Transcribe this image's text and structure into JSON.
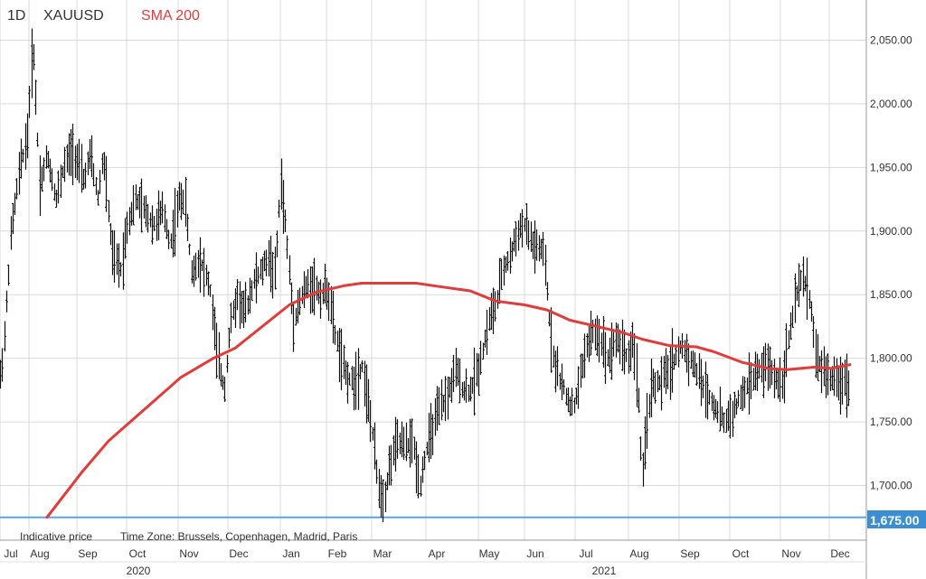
{
  "header": {
    "interval": "1D",
    "symbol": "XAUUSD",
    "indicator": "SMA 200"
  },
  "footer": {
    "note": "Indicative price",
    "timezone": "Time Zone: Brussels, Copenhagen, Madrid, Paris"
  },
  "colors": {
    "sma": "#e03c3c",
    "price": "#111111",
    "level": "#5aa6d6",
    "badge": "#3b8fd0",
    "grid": "#d9d9d9"
  },
  "chart_data": {
    "type": "ohlc",
    "title": "XAUUSD",
    "interval": "1D",
    "ylim": [
      1655,
      2085
    ],
    "y_ticks": [
      1700,
      1750,
      1800,
      1850,
      1900,
      1950,
      2000,
      2050
    ],
    "y_tick_labels": [
      "1,700.00",
      "1,750.00",
      "1,800.00",
      "1,850.00",
      "1,900.00",
      "1,950.00",
      "2,000.00",
      "2,050.00"
    ],
    "x_labels": [
      "Jul",
      "Aug",
      "Sep",
      "Oct",
      "Nov",
      "Dec",
      "Jan",
      "Feb",
      "Mar",
      "Apr",
      "May",
      "Jun",
      "Jul",
      "Aug",
      "Sep",
      "Oct",
      "Nov",
      "Dec"
    ],
    "years": [
      "2020",
      "2021"
    ],
    "horizontal_line": {
      "value": 1675,
      "label": "1,675.00"
    },
    "price_keyframes": [
      [
        0,
        1785
      ],
      [
        4,
        1810
      ],
      [
        12,
        1900
      ],
      [
        22,
        1950
      ],
      [
        30,
        1975
      ],
      [
        36,
        2050
      ],
      [
        44,
        1935
      ],
      [
        52,
        1960
      ],
      [
        62,
        1925
      ],
      [
        70,
        1950
      ],
      [
        80,
        1965
      ],
      [
        92,
        1940
      ],
      [
        100,
        1960
      ],
      [
        108,
        1925
      ],
      [
        114,
        1960
      ],
      [
        124,
        1880
      ],
      [
        134,
        1870
      ],
      [
        140,
        1905
      ],
      [
        150,
        1925
      ],
      [
        160,
        1915
      ],
      [
        170,
        1905
      ],
      [
        180,
        1915
      ],
      [
        188,
        1890
      ],
      [
        198,
        1925
      ],
      [
        204,
        1925
      ],
      [
        212,
        1865
      ],
      [
        220,
        1880
      ],
      [
        232,
        1855
      ],
      [
        240,
        1800
      ],
      [
        248,
        1775
      ],
      [
        254,
        1825
      ],
      [
        262,
        1850
      ],
      [
        270,
        1835
      ],
      [
        280,
        1860
      ],
      [
        290,
        1870
      ],
      [
        296,
        1880
      ],
      [
        304,
        1865
      ],
      [
        310,
        1940
      ],
      [
        316,
        1900
      ],
      [
        324,
        1830
      ],
      [
        334,
        1850
      ],
      [
        344,
        1860
      ],
      [
        354,
        1850
      ],
      [
        362,
        1855
      ],
      [
        370,
        1820
      ],
      [
        380,
        1790
      ],
      [
        390,
        1780
      ],
      [
        400,
        1795
      ],
      [
        410,
        1750
      ],
      [
        418,
        1700
      ],
      [
        424,
        1690
      ],
      [
        432,
        1720
      ],
      [
        440,
        1735
      ],
      [
        448,
        1730
      ],
      [
        456,
        1735
      ],
      [
        464,
        1700
      ],
      [
        470,
        1725
      ],
      [
        478,
        1745
      ],
      [
        486,
        1760
      ],
      [
        494,
        1770
      ],
      [
        504,
        1790
      ],
      [
        512,
        1775
      ],
      [
        520,
        1775
      ],
      [
        528,
        1790
      ],
      [
        536,
        1815
      ],
      [
        542,
        1835
      ],
      [
        548,
        1840
      ],
      [
        556,
        1870
      ],
      [
        564,
        1880
      ],
      [
        572,
        1900
      ],
      [
        580,
        1905
      ],
      [
        588,
        1890
      ],
      [
        596,
        1885
      ],
      [
        602,
        1880
      ],
      [
        606,
        1840
      ],
      [
        612,
        1800
      ],
      [
        618,
        1785
      ],
      [
        626,
        1770
      ],
      [
        634,
        1760
      ],
      [
        640,
        1780
      ],
      [
        648,
        1810
      ],
      [
        656,
        1820
      ],
      [
        664,
        1815
      ],
      [
        672,
        1800
      ],
      [
        680,
        1815
      ],
      [
        688,
        1810
      ],
      [
        694,
        1800
      ],
      [
        700,
        1815
      ],
      [
        706,
        1770
      ],
      [
        710,
        1700
      ],
      [
        716,
        1760
      ],
      [
        722,
        1780
      ],
      [
        730,
        1780
      ],
      [
        738,
        1790
      ],
      [
        746,
        1800
      ],
      [
        754,
        1810
      ],
      [
        762,
        1800
      ],
      [
        770,
        1790
      ],
      [
        776,
        1780
      ],
      [
        784,
        1770
      ],
      [
        792,
        1760
      ],
      [
        800,
        1750
      ],
      [
        808,
        1755
      ],
      [
        816,
        1765
      ],
      [
        824,
        1775
      ],
      [
        832,
        1785
      ],
      [
        840,
        1790
      ],
      [
        848,
        1795
      ],
      [
        856,
        1785
      ],
      [
        864,
        1780
      ],
      [
        872,
        1815
      ],
      [
        878,
        1840
      ],
      [
        884,
        1860
      ],
      [
        890,
        1860
      ],
      [
        896,
        1845
      ],
      [
        902,
        1800
      ],
      [
        910,
        1790
      ],
      [
        918,
        1785
      ],
      [
        926,
        1780
      ],
      [
        934,
        1785
      ],
      [
        940,
        1775
      ]
    ],
    "sma200": [
      [
        52,
        1675
      ],
      [
        90,
        1710
      ],
      [
        120,
        1735
      ],
      [
        160,
        1760
      ],
      [
        200,
        1785
      ],
      [
        236,
        1800
      ],
      [
        260,
        1808
      ],
      [
        290,
        1825
      ],
      [
        320,
        1842
      ],
      [
        350,
        1852
      ],
      [
        380,
        1857
      ],
      [
        400,
        1859
      ],
      [
        430,
        1859
      ],
      [
        460,
        1859
      ],
      [
        490,
        1856
      ],
      [
        520,
        1853
      ],
      [
        548,
        1845
      ],
      [
        580,
        1842
      ],
      [
        605,
        1838
      ],
      [
        630,
        1830
      ],
      [
        660,
        1825
      ],
      [
        690,
        1820
      ],
      [
        710,
        1815
      ],
      [
        740,
        1810
      ],
      [
        770,
        1809
      ],
      [
        790,
        1805
      ],
      [
        820,
        1797
      ],
      [
        850,
        1792
      ],
      [
        870,
        1791
      ],
      [
        900,
        1793
      ],
      [
        920,
        1792
      ],
      [
        940,
        1795
      ]
    ]
  }
}
